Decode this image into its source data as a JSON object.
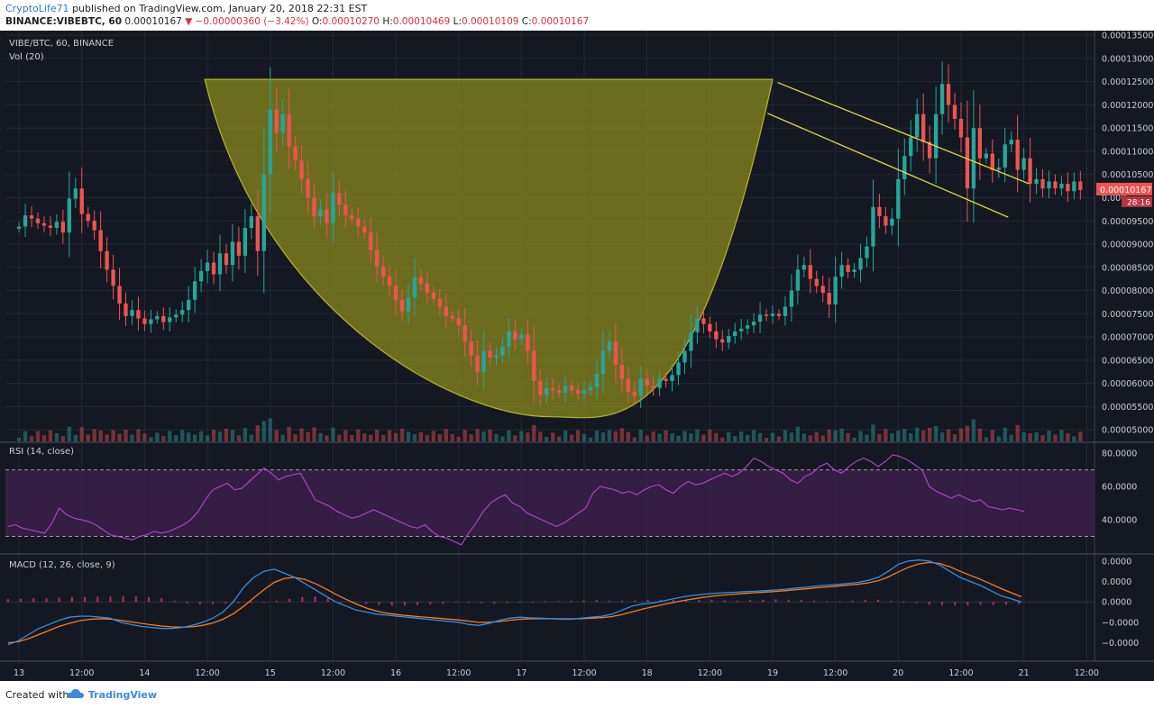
{
  "header": {
    "author": "CryptoLife71",
    "published_text": "published on TradingView.com, January 20, 2018 22:31 EST",
    "symbol": "BINANCE:VIBEBTC, 60",
    "last": "0.00010167",
    "change": "−0.00000360 (−3.42%)",
    "o_label": "O:",
    "o": "0.00010270",
    "h_label": "H:",
    "h": "0.00010469",
    "l_label": "L:",
    "l": "0.00010109",
    "c_label": "C:",
    "c": "0.00010167"
  },
  "footer": {
    "created_with": "Created with",
    "brand": "TradingView"
  },
  "colors": {
    "background": "#141822",
    "up": "#26a69a",
    "down": "#ef5350",
    "cup_fill": "#8f8e1d",
    "channel": "#e6d640",
    "rsi": "#b040c8",
    "macd": "#2f8fe8",
    "signal": "#ff7a1a",
    "grid": "#232836"
  },
  "chart_data": [
    {
      "type": "candlestick",
      "legend": [
        "VIBE/BTC, 60, BINANCE",
        "Vol (20)"
      ],
      "ylim": [
        4.75e-05,
        0.000136
      ],
      "y_ticks": [
        {
          "v": 0.000135,
          "label": "0.00013500"
        },
        {
          "v": 0.00013,
          "label": "0.00013000"
        },
        {
          "v": 0.000125,
          "label": "0.00012500"
        },
        {
          "v": 0.00012,
          "label": "0.00012000"
        },
        {
          "v": 0.000115,
          "label": "0.00011500"
        },
        {
          "v": 0.00011,
          "label": "0.00011000"
        },
        {
          "v": 0.000105,
          "label": "0.00010500"
        },
        {
          "v": 0.0001,
          "label": "0.000"
        },
        {
          "v": 9.5e-05,
          "label": "0.00009500"
        },
        {
          "v": 9e-05,
          "label": "0.00009000"
        },
        {
          "v": 8.5e-05,
          "label": "0.00008500"
        },
        {
          "v": 8e-05,
          "label": "0.00008000"
        },
        {
          "v": 7.5e-05,
          "label": "0.00007500"
        },
        {
          "v": 7e-05,
          "label": "0.00007000"
        },
        {
          "v": 6.5e-05,
          "label": "0.00006500"
        },
        {
          "v": 6e-05,
          "label": "0.00006000"
        },
        {
          "v": 5.5e-05,
          "label": "0.00005500"
        },
        {
          "v": 5e-05,
          "label": "0.00005000"
        }
      ],
      "price_label": "0.00010167",
      "countdown_label": "28:16",
      "x_ticks": [
        "13",
        "12:00",
        "14",
        "12:00",
        "15",
        "12:00",
        "16",
        "12:00",
        "17",
        "12:00",
        "18",
        "12:00",
        "19",
        "12:00",
        "20",
        "12:00",
        "21",
        "12:00"
      ],
      "x_tick_hours": [
        0,
        12,
        24,
        36,
        48,
        60,
        72,
        84,
        96,
        108,
        120,
        132,
        144,
        156,
        168,
        180,
        192,
        204
      ],
      "x_range_hours": [
        -2.6,
        205.5
      ],
      "closes": [
        9.38e-05,
        9.62e-05,
        9.55e-05,
        9.45e-05,
        9.4e-05,
        9.35e-05,
        9.48e-05,
        9.25e-05,
        9.98e-05,
        0.000102,
        9.65e-05,
        9.5e-05,
        9.3e-05,
        8.85e-05,
        8.45e-05,
        8.1e-05,
        7.72e-05,
        7.45e-05,
        7.58e-05,
        7.4e-05,
        7.28e-05,
        7.38e-05,
        7.45e-05,
        7.32e-05,
        7.42e-05,
        7.48e-05,
        7.58e-05,
        7.8e-05,
        8.2e-05,
        8.42e-05,
        8.6e-05,
        8.35e-05,
        8.8e-05,
        8.55e-05,
        9.05e-05,
        8.75e-05,
        9.35e-05,
        9.6e-05,
        8.85e-05,
        0.000105,
        0.000119,
        0.000114,
        0.000118,
        0.000111,
        0.000108,
        0.000104,
        0.0001,
        9.6e-05,
        9.75e-05,
        9.45e-05,
        0.000101,
        9.85e-05,
        9.62e-05,
        9.55e-05,
        9.38e-05,
        9.25e-05,
        8.88e-05,
        8.52e-05,
        8.3e-05,
        8.1e-05,
        7.8e-05,
        7.55e-05,
        7.85e-05,
        8.28e-05,
        8.15e-05,
        7.95e-05,
        7.82e-05,
        7.65e-05,
        7.45e-05,
        7.4e-05,
        7.25e-05,
        6.9e-05,
        6.6e-05,
        6.25e-05,
        6.7e-05,
        6.55e-05,
        6.6e-05,
        6.8e-05,
        7.12e-05,
        6.95e-05,
        7.05e-05,
        6.7e-05,
        6.05e-05,
        5.75e-05,
        5.9e-05,
        5.85e-05,
        5.8e-05,
        5.95e-05,
        5.85e-05,
        5.78e-05,
        5.85e-05,
        5.92e-05,
        6.2e-05,
        6.7e-05,
        6.9e-05,
        6.4e-05,
        6.1e-05,
        5.82e-05,
        5.72e-05,
        6.1e-05,
        5.95e-05,
        5.9e-05,
        6.1e-05,
        6.05e-05,
        6.18e-05,
        6.45e-05,
        6.7e-05,
        7.1e-05,
        7.4e-05,
        7.28e-05,
        7.12e-05,
        6.95e-05,
        6.88e-05,
        7.02e-05,
        7.12e-05,
        7.18e-05,
        7.25e-05,
        7.33e-05,
        7.48e-05,
        7.45e-05,
        7.5e-05,
        7.45e-05,
        7.65e-05,
        8e-05,
        8.45e-05,
        8.55e-05,
        8.25e-05,
        8.1e-05,
        7.95e-05,
        7.7e-05,
        8.3e-05,
        8.55e-05,
        8.4e-05,
        8.45e-05,
        8.7e-05,
        8.95e-05,
        9.8e-05,
        9.6e-05,
        9.4e-05,
        9.55e-05,
        0.000104,
        0.000109,
        0.000113,
        0.000118,
        0.000112,
        0.0001085,
        0.000118,
        0.0001245,
        0.00012,
        0.000117,
        0.000113,
        0.000102,
        0.000115,
        0.0001085,
        0.0001095,
        0.000106,
        0.0001065,
        0.0001115,
        0.0001125,
        0.000106,
        0.0001085,
        0.000103,
        0.000104,
        0.000102,
        0.0001035,
        0.000102,
        0.000103,
        0.0001014,
        0.0001035,
        0.00010167
      ],
      "cup_rim_price": 0.0001255,
      "cup_left_hours": 35.5,
      "cup_right_hours": 144.0,
      "cup_bottom_price": 5.28e-05,
      "cup_bottom_hours": 101.5,
      "channel_upper": [
        {
          "hours": 145.0,
          "price": 0.0001248
        },
        {
          "hours": 193.0,
          "price": 0.000103
        }
      ],
      "channel_lower": [
        {
          "hours": 143.0,
          "price": 0.0001182
        },
        {
          "hours": 189.0,
          "price": 9.58e-05
        }
      ]
    },
    {
      "type": "line",
      "legend": "RSI (14, close)",
      "ylim": [
        20,
        86
      ],
      "y_ticks": [
        {
          "v": 80,
          "label": "80.0000"
        },
        {
          "v": 60,
          "label": "60.0000"
        },
        {
          "v": 40,
          "label": "40.0000"
        }
      ],
      "band": [
        30,
        70
      ],
      "values": [
        36,
        37,
        35,
        34,
        33,
        32,
        38,
        47,
        43,
        41,
        40,
        39,
        37,
        34,
        31,
        30,
        29,
        28,
        30,
        31,
        33,
        32,
        33,
        35,
        37,
        40,
        45,
        52,
        58,
        60,
        62,
        58,
        59,
        63,
        67,
        71,
        68,
        64,
        66,
        67,
        68,
        60,
        52,
        50,
        48,
        45,
        43,
        41,
        42,
        44,
        46,
        44,
        42,
        40,
        38,
        36,
        35,
        37,
        33,
        30,
        29,
        27,
        25,
        32,
        38,
        45,
        50,
        53,
        55,
        50,
        48,
        44,
        42,
        40,
        38,
        36,
        38,
        41,
        44,
        47,
        56,
        60,
        59,
        58,
        56,
        57,
        55,
        58,
        60,
        61,
        58,
        56,
        60,
        63,
        61,
        62,
        64,
        66,
        68,
        66,
        68,
        72,
        77,
        75,
        72,
        70,
        68,
        64,
        62,
        66,
        68,
        72,
        74,
        70,
        68,
        72,
        75,
        77,
        75,
        72,
        75,
        79,
        78,
        76,
        73,
        70,
        60,
        57,
        55,
        53,
        55,
        53,
        51,
        52,
        48,
        47,
        46,
        47,
        46,
        45
      ]
    },
    {
      "type": "line",
      "legend": "MACD (12, 26, close, 9)",
      "ylim": [
        -2.9,
        2.3
      ],
      "y_ticks": [
        {
          "v": 2,
          "label": "0.0000"
        },
        {
          "v": 1,
          "label": "0.0000"
        },
        {
          "v": 0,
          "label": "0.0000"
        },
        {
          "v": -1,
          "label": "−0.0000"
        },
        {
          "v": -2,
          "label": "−0.0000"
        }
      ],
      "series": [
        {
          "values": [
            -2.1,
            -1.9,
            -1.6,
            -1.3,
            -1.1,
            -0.9,
            -0.75,
            -0.7,
            -0.7,
            -0.75,
            -0.8,
            -1.0,
            -1.1,
            -1.2,
            -1.25,
            -1.3,
            -1.3,
            -1.25,
            -1.15,
            -1.0,
            -0.8,
            -0.5,
            0.0,
            0.7,
            1.2,
            1.5,
            1.6,
            1.4,
            1.2,
            0.9,
            0.6,
            0.3,
            0.0,
            -0.2,
            -0.4,
            -0.5,
            -0.6,
            -0.65,
            -0.7,
            -0.75,
            -0.8,
            -0.85,
            -0.9,
            -0.95,
            -1.0,
            -1.1,
            -1.15,
            -1.05,
            -0.9,
            -0.8,
            -0.75,
            -0.78,
            -0.8,
            -0.82,
            -0.85,
            -0.85,
            -0.8,
            -0.75,
            -0.7,
            -0.6,
            -0.4,
            -0.2,
            -0.1,
            -0.05,
            0.05,
            0.15,
            0.25,
            0.32,
            0.38,
            0.42,
            0.45,
            0.47,
            0.5,
            0.52,
            0.55,
            0.58,
            0.62,
            0.68,
            0.72,
            0.78,
            0.82,
            0.85,
            0.9,
            0.95,
            1.05,
            1.2,
            1.5,
            1.85,
            2.0,
            2.05,
            2.0,
            1.8,
            1.5,
            1.2,
            1.0,
            0.8,
            0.55,
            0.3,
            0.15,
            0.0
          ]
        },
        {
          "values": [
            -2.0,
            -1.95,
            -1.8,
            -1.6,
            -1.4,
            -1.2,
            -1.05,
            -0.92,
            -0.85,
            -0.83,
            -0.84,
            -0.9,
            -0.98,
            -1.05,
            -1.12,
            -1.18,
            -1.22,
            -1.24,
            -1.22,
            -1.15,
            -1.03,
            -0.85,
            -0.58,
            -0.22,
            0.2,
            0.6,
            0.95,
            1.15,
            1.2,
            1.1,
            0.9,
            0.65,
            0.38,
            0.13,
            -0.1,
            -0.3,
            -0.45,
            -0.55,
            -0.62,
            -0.67,
            -0.72,
            -0.76,
            -0.8,
            -0.84,
            -0.88,
            -0.94,
            -1.0,
            -1.0,
            -0.96,
            -0.9,
            -0.85,
            -0.83,
            -0.82,
            -0.82,
            -0.83,
            -0.83,
            -0.82,
            -0.8,
            -0.77,
            -0.72,
            -0.62,
            -0.48,
            -0.35,
            -0.24,
            -0.13,
            -0.03,
            0.07,
            0.15,
            0.23,
            0.29,
            0.34,
            0.38,
            0.42,
            0.45,
            0.48,
            0.51,
            0.55,
            0.6,
            0.64,
            0.69,
            0.73,
            0.77,
            0.82,
            0.86,
            0.93,
            1.03,
            1.22,
            1.47,
            1.7,
            1.86,
            1.93,
            1.88,
            1.72,
            1.5,
            1.3,
            1.1,
            0.88,
            0.65,
            0.45,
            0.25
          ]
        }
      ],
      "hist_bars": [
        0.45,
        0.5,
        0.6,
        0.55,
        0.7,
        0.75,
        0.8,
        0.85,
        0.9,
        0.95,
        0.9,
        0.8,
        0.6,
        0.2,
        -0.25,
        -0.4,
        -0.35,
        -0.3,
        -0.25,
        -0.2,
        -0.1,
        0.2,
        0.5,
        0.8,
        0.9,
        0.6,
        0.0,
        -0.2,
        -0.35,
        -0.5,
        -0.55,
        -0.6,
        -0.5,
        -0.4,
        -0.3,
        -0.1,
        -0.15,
        -0.2,
        -0.3,
        -0.2,
        -0.1,
        -0.05,
        0.1,
        0.15,
        0.2,
        0.25,
        0.3,
        0.2,
        0.2,
        0.25,
        0.3,
        0.35,
        0.3,
        0.25,
        0.3,
        0.3,
        0.25,
        0.2,
        0.3,
        0.35,
        0.4,
        0.35,
        0.3,
        0.2,
        0.1,
        0.1,
        0.2,
        0.3,
        0.35,
        0.2,
        0.05,
        -0.2,
        -0.45,
        -0.5,
        -0.55,
        -0.55,
        -0.5,
        -0.5,
        -0.45,
        -0.4
      ]
    }
  ]
}
